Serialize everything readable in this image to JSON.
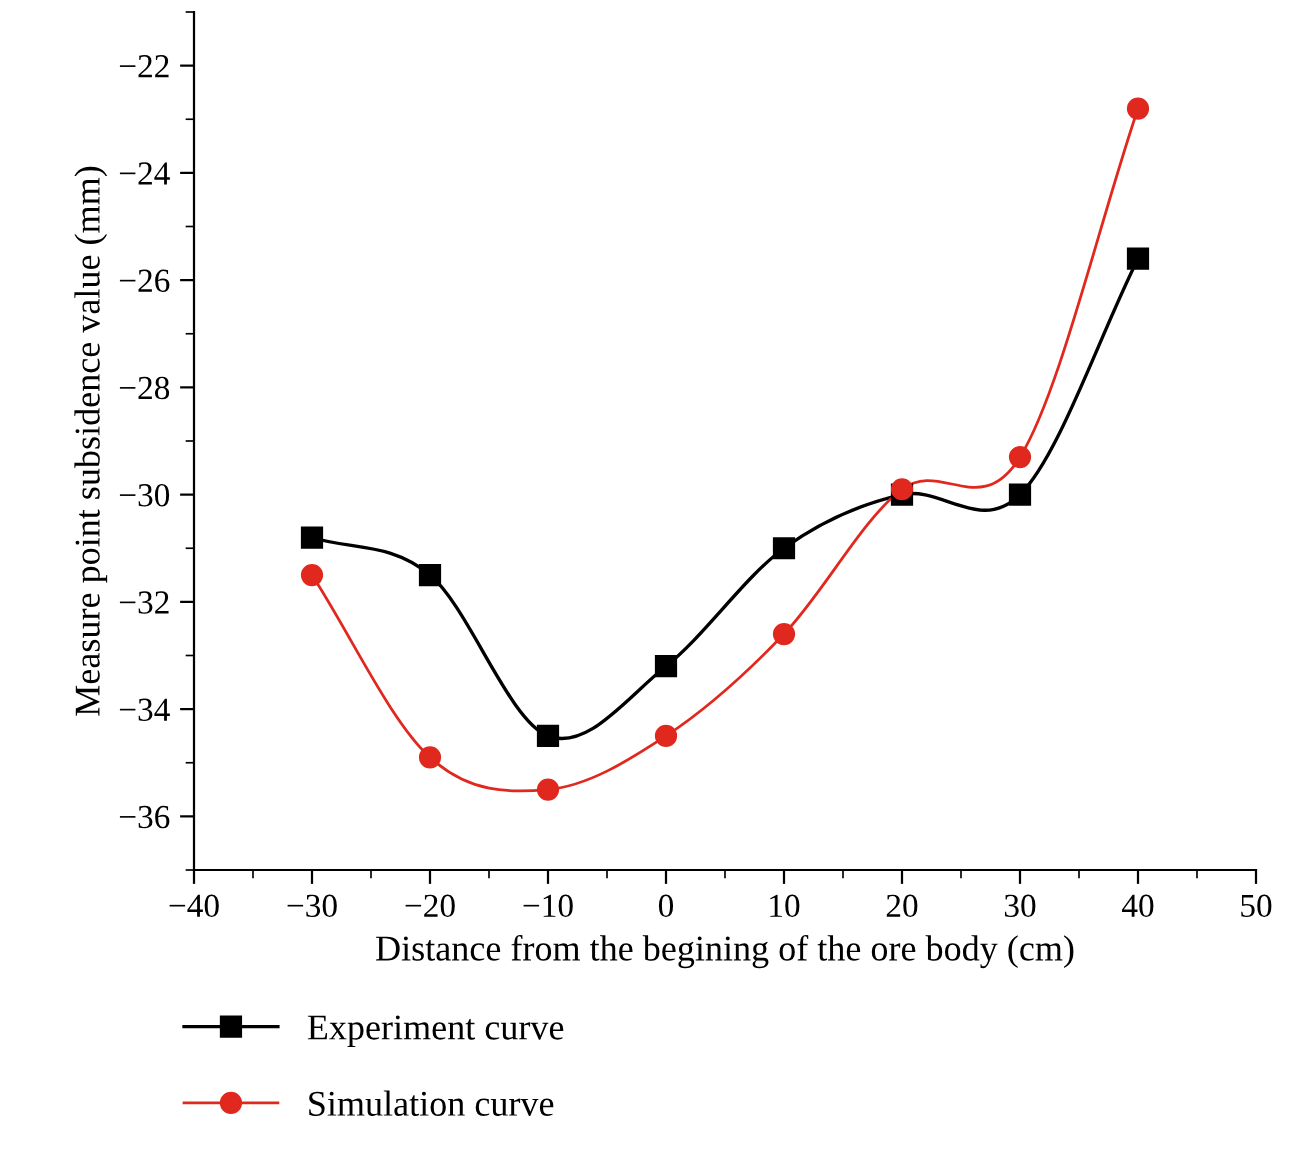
{
  "chart_data": {
    "type": "line",
    "xlabel": "Distance from the begining of the ore body (cm)",
    "ylabel": "Measure point subsidence value (mm)",
    "x": [
      -30,
      -20,
      -10,
      0,
      10,
      20,
      30,
      40
    ],
    "series": [
      {
        "name": "Experiment curve",
        "color": "#000000",
        "marker": "square",
        "values": [
          -30.8,
          -31.5,
          -34.5,
          -33.2,
          -31.0,
          -30.0,
          -30.0,
          -25.6
        ]
      },
      {
        "name": "Simulation curve",
        "color": "#e0281e",
        "marker": "circle",
        "values": [
          -31.5,
          -34.9,
          -35.5,
          -34.5,
          -32.6,
          -29.9,
          -29.3,
          -22.8
        ]
      }
    ],
    "xlim": [
      -40,
      50
    ],
    "xticks": [
      -40,
      -30,
      -20,
      -10,
      0,
      10,
      20,
      30,
      40,
      50
    ],
    "ylim": [
      -37,
      -21
    ],
    "yticks": [
      -36,
      -34,
      -32,
      -30,
      -28,
      -26,
      -24,
      -22
    ],
    "grid": false,
    "legend": "bottom left",
    "line_style": "solid"
  }
}
